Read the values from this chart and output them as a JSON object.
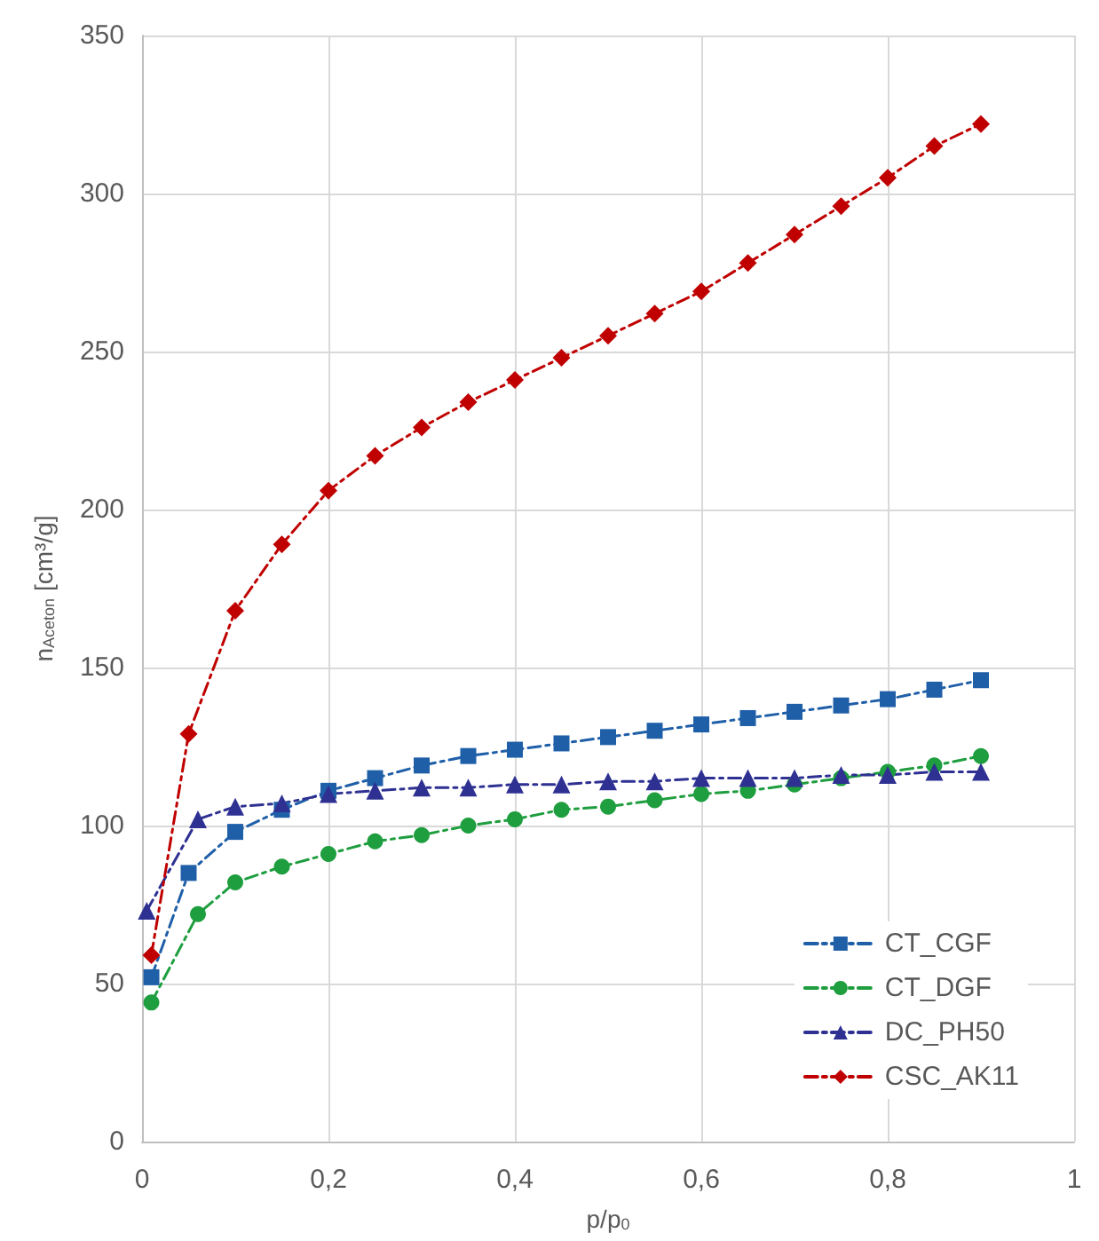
{
  "chart_data": {
    "type": "line",
    "xlabel": "p/p$_{0}$",
    "ylabel": "n$_{Aceton}$ [cm³/g]",
    "xlim": [
      0,
      1
    ],
    "xticks": [
      0,
      {
        "value": 0.2,
        "label": "0,2"
      },
      {
        "value": 0.4,
        "label": "0,4"
      },
      {
        "value": 0.6,
        "label": "0,6"
      },
      {
        "value": 0.8,
        "label": "0,8"
      },
      1
    ],
    "ylim": [
      0,
      350
    ],
    "yticks": [
      0,
      50,
      100,
      150,
      200,
      250,
      300,
      350
    ],
    "grid": true,
    "legend": "bottom right",
    "line_style": "dashed",
    "series": [
      {
        "name": "CT_CGF",
        "color": "#1f5fa8",
        "marker": "square",
        "x": [
          0.01,
          0.05,
          0.1,
          0.15,
          0.2,
          0.25,
          0.3,
          0.35,
          0.4,
          0.45,
          0.5,
          0.55,
          0.6,
          0.65,
          0.7,
          0.75,
          0.8,
          0.85,
          0.9
        ],
        "values": [
          52,
          85,
          98,
          105,
          111,
          115,
          119,
          122,
          124,
          126,
          128,
          130,
          132,
          134,
          136,
          138,
          140,
          143,
          146
        ]
      },
      {
        "name": "CT_DGF",
        "color": "#1e9e3e",
        "marker": "circle",
        "x": [
          0.01,
          0.06,
          0.1,
          0.15,
          0.2,
          0.25,
          0.3,
          0.35,
          0.4,
          0.45,
          0.5,
          0.55,
          0.6,
          0.65,
          0.7,
          0.75,
          0.8,
          0.85,
          0.9
        ],
        "values": [
          44,
          72,
          82,
          87,
          91,
          95,
          97,
          100,
          102,
          105,
          106,
          108,
          110,
          111,
          113,
          115,
          117,
          119,
          122
        ]
      },
      {
        "name": "DC_PH50",
        "color": "#2e3192",
        "marker": "triangle",
        "x": [
          0.005,
          0.06,
          0.1,
          0.15,
          0.2,
          0.25,
          0.3,
          0.35,
          0.4,
          0.45,
          0.5,
          0.55,
          0.6,
          0.65,
          0.7,
          0.75,
          0.8,
          0.85,
          0.9
        ],
        "values": [
          73,
          102,
          106,
          107,
          110,
          111,
          112,
          112,
          113,
          113,
          114,
          114,
          115,
          115,
          115,
          116,
          116,
          117,
          117
        ]
      },
      {
        "name": "CSC_AK11",
        "color": "#c00000",
        "marker": "diamond",
        "x": [
          0.01,
          0.05,
          0.1,
          0.15,
          0.2,
          0.25,
          0.3,
          0.35,
          0.4,
          0.45,
          0.5,
          0.55,
          0.6,
          0.65,
          0.7,
          0.75,
          0.8,
          0.85,
          0.9
        ],
        "values": [
          59,
          129,
          168,
          189,
          206,
          217,
          226,
          234,
          241,
          248,
          255,
          262,
          269,
          278,
          287,
          296,
          305,
          315,
          322
        ]
      }
    ]
  }
}
